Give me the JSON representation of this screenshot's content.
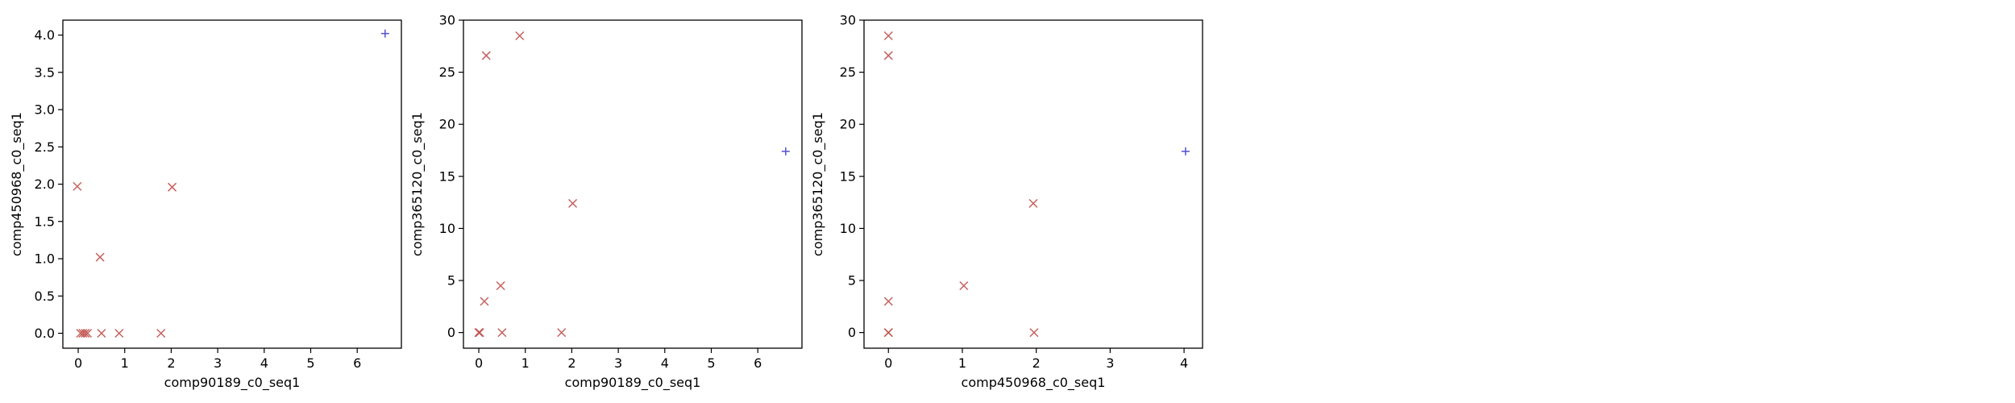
{
  "chart_data": [
    {
      "type": "scatter",
      "xlabel": "comp90189_c0_seq1",
      "ylabel": "comp450968_c0_seq1",
      "xlim": [
        -0.33,
        6.95
      ],
      "ylim": [
        -0.2,
        4.2
      ],
      "xticks": [
        0,
        1,
        2,
        3,
        4,
        5,
        6
      ],
      "xtick_labels": [
        "0",
        "1",
        "2",
        "3",
        "4",
        "5",
        "6"
      ],
      "yticks": [
        0,
        0.5,
        1,
        1.5,
        2,
        2.5,
        3,
        3.5,
        4
      ],
      "ytick_labels": [
        "0.0",
        "0.5",
        "1.0",
        "1.5",
        "2.0",
        "2.5",
        "3.0",
        "3.5",
        "4.0"
      ],
      "grid": false,
      "series": [
        {
          "marker": "x",
          "color": "#c0504d",
          "x": [
            -0.02,
            0.05,
            0.1,
            0.15,
            0.2,
            0.47,
            0.5,
            0.88,
            1.78,
            2.02
          ],
          "y": [
            1.97,
            0,
            0,
            0,
            0,
            1.02,
            0,
            0,
            0,
            1.96
          ]
        },
        {
          "marker": "+",
          "color": "#4040c8",
          "x": [
            6.6
          ],
          "y": [
            4.02
          ]
        }
      ]
    },
    {
      "type": "scatter",
      "xlabel": "comp90189_c0_seq1",
      "ylabel": "comp365120_c0_seq1",
      "xlim": [
        -0.33,
        6.95
      ],
      "ylim": [
        -1.5,
        30
      ],
      "xticks": [
        0,
        1,
        2,
        3,
        4,
        5,
        6
      ],
      "xtick_labels": [
        "0",
        "1",
        "2",
        "3",
        "4",
        "5",
        "6"
      ],
      "yticks": [
        0,
        5,
        10,
        15,
        20,
        25,
        30
      ],
      "ytick_labels": [
        "0",
        "5",
        "10",
        "15",
        "20",
        "25",
        "30"
      ],
      "grid": false,
      "series": [
        {
          "marker": "x",
          "color": "#c0504d",
          "x": [
            0,
            0.02,
            0.12,
            0.16,
            0.47,
            0.5,
            0.88,
            1.78,
            2.02
          ],
          "y": [
            0,
            0,
            3,
            26.6,
            4.5,
            0,
            28.5,
            0,
            12.4
          ]
        },
        {
          "marker": "+",
          "color": "#4040c8",
          "x": [
            6.6
          ],
          "y": [
            17.4
          ]
        }
      ]
    },
    {
      "type": "scatter",
      "xlabel": "comp450968_c0_seq1",
      "ylabel": "comp365120_c0_seq1",
      "xlim": [
        -0.33,
        4.25
      ],
      "ylim": [
        -1.5,
        30
      ],
      "xticks": [
        0,
        1,
        2,
        3,
        4
      ],
      "xtick_labels": [
        "0",
        "1",
        "2",
        "3",
        "4"
      ],
      "yticks": [
        0,
        5,
        10,
        15,
        20,
        25,
        30
      ],
      "ytick_labels": [
        "0",
        "5",
        "10",
        "15",
        "20",
        "25",
        "30"
      ],
      "grid": false,
      "series": [
        {
          "marker": "x",
          "color": "#c0504d",
          "x": [
            0,
            0,
            0,
            0,
            0,
            1.02,
            1.96,
            1.97
          ],
          "y": [
            0,
            0,
            3,
            26.6,
            28.5,
            4.5,
            12.4,
            0
          ]
        },
        {
          "marker": "+",
          "color": "#4040c8",
          "x": [
            4.02
          ],
          "y": [
            17.4
          ]
        }
      ]
    }
  ]
}
